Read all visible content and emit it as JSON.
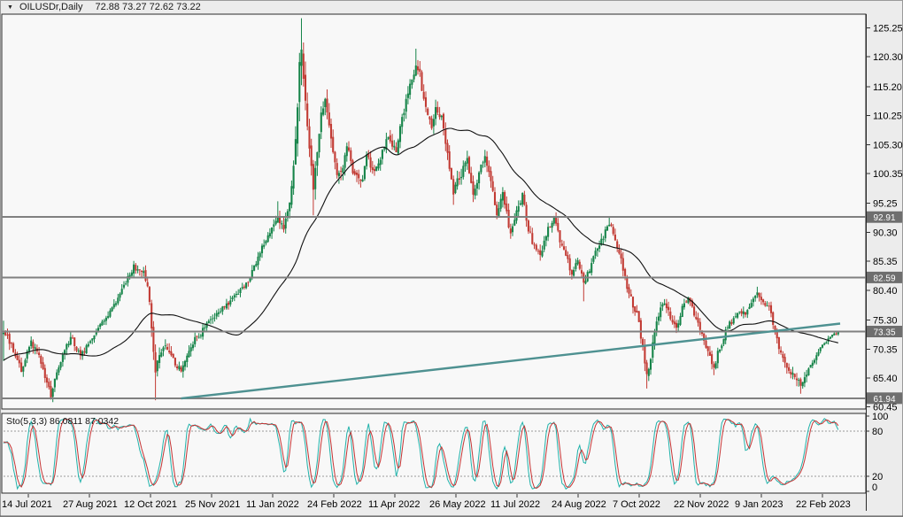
{
  "titlebar": {
    "dropdown_icon": "▼",
    "symbol_period": "OILUSDr,Daily",
    "quote_text": "72.88 73.27 72.62 73.22"
  },
  "colors": {
    "panel_bg": "#f8f8f8",
    "outer_bg": "#ececec",
    "border": "#2a2a2a",
    "up": "#168449",
    "down": "#c23b34",
    "ma": "#111111",
    "trendline": "#4e9191",
    "hline": "#808080",
    "tag_bg": "#6e6e6e",
    "tag_text": "#ffffff",
    "sto_k": "#20b2aa",
    "sto_d": "#c63434",
    "sto_level": "#9a9a9a",
    "axis_text": "#000000"
  },
  "chart_data": {
    "type": "candlestick",
    "symbol": "OILUSDr",
    "timeframe": "Daily",
    "quote": {
      "open": 72.88,
      "high": 73.27,
      "low": 72.62,
      "close": 73.22
    },
    "y_axis": {
      "ticks": [
        "125.25",
        "120.30",
        "115.20",
        "110.25",
        "105.30",
        "100.35",
        "95.25",
        "90.30",
        "85.35",
        "80.40",
        "75.30",
        "70.35",
        "65.40",
        "60.45"
      ],
      "range": [
        60.1,
        127.6
      ]
    },
    "x_axis": {
      "labels": [
        "14 Jul 2021",
        "27 Aug 2021",
        "12 Oct 2021",
        "25 Nov 2021",
        "11 Jan 2022",
        "24 Feb 2022",
        "11 Apr 2022",
        "26 May 2022",
        "11 Jul 2022",
        "24 Aug 2022",
        "7 Oct 2022",
        "22 Nov 2022",
        "9 Jan 2023",
        "22 Feb 2023"
      ]
    },
    "horizontal_lines": [
      {
        "price": 92.91,
        "label": "92.91"
      },
      {
        "price": 82.59,
        "label": "82.59"
      },
      {
        "price": 73.35,
        "label": "73.35"
      },
      {
        "price": 61.94,
        "label": "61.94"
      }
    ],
    "trendline": {
      "bar_start": 90,
      "price_start": 61.9,
      "bar_end": 424,
      "price_end": 74.7
    },
    "ma": {
      "period": 45
    },
    "stochastic": {
      "label": "Sto(5,3,3)",
      "k_value": "86.0811",
      "d_value": "87.0342",
      "period_k": 5,
      "period_d": 3,
      "slowing": 3,
      "levels": [
        80,
        20
      ],
      "scale_ticks": [
        "100",
        "80",
        "20",
        "0"
      ],
      "range": [
        0,
        100
      ]
    },
    "bars": {
      "count": 424,
      "seed": 20,
      "warmup": {
        "bars": 50,
        "start_price": 62
      },
      "anchors": [
        [
          0,
          73.5
        ],
        [
          4,
          71
        ],
        [
          9,
          66.8
        ],
        [
          14,
          71.5
        ],
        [
          18,
          69
        ],
        [
          24,
          62.3
        ],
        [
          30,
          69.5
        ],
        [
          34,
          72.5
        ],
        [
          39,
          69
        ],
        [
          45,
          72.5
        ],
        [
          52,
          75.5
        ],
        [
          61,
          81
        ],
        [
          66,
          84.5
        ],
        [
          71,
          83.5
        ],
        [
          74,
          79
        ],
        [
          77,
          65.5
        ],
        [
          79,
          69.5
        ],
        [
          82,
          71.5
        ],
        [
          86,
          68.5
        ],
        [
          90,
          66.5
        ],
        [
          97,
          72
        ],
        [
          106,
          75.5
        ],
        [
          115,
          78.5
        ],
        [
          124,
          82
        ],
        [
          130,
          87
        ],
        [
          135,
          90.5
        ],
        [
          139,
          93
        ],
        [
          142,
          90.5
        ],
        [
          145,
          95
        ],
        [
          147,
          101
        ],
        [
          149,
          110
        ],
        [
          150,
          121
        ],
        [
          151,
          123
        ],
        [
          153,
          112
        ],
        [
          155,
          104
        ],
        [
          157,
          97.5
        ],
        [
          159,
          103
        ],
        [
          161,
          110
        ],
        [
          163,
          113.5
        ],
        [
          165,
          109
        ],
        [
          167,
          104
        ],
        [
          169,
          99.5
        ],
        [
          172,
          102
        ],
        [
          174,
          105
        ],
        [
          177,
          101
        ],
        [
          181,
          98.5
        ],
        [
          184,
          103
        ],
        [
          188,
          101
        ],
        [
          192,
          104
        ],
        [
          195,
          106.5
        ],
        [
          199,
          104.5
        ],
        [
          202,
          110
        ],
        [
          205,
          114
        ],
        [
          209,
          119
        ],
        [
          211,
          117
        ],
        [
          214,
          111
        ],
        [
          217,
          108.5
        ],
        [
          219,
          111.5
        ],
        [
          222,
          110
        ],
        [
          225,
          104
        ],
        [
          228,
          97.5
        ],
        [
          232,
          100.5
        ],
        [
          235,
          103
        ],
        [
          238,
          97
        ],
        [
          241,
          100.5
        ],
        [
          244,
          103.5
        ],
        [
          247,
          99
        ],
        [
          250,
          93.5
        ],
        [
          253,
          96.5
        ],
        [
          257,
          90
        ],
        [
          260,
          94
        ],
        [
          263,
          96.5
        ],
        [
          266,
          91
        ],
        [
          269,
          87.5
        ],
        [
          272,
          86.5
        ],
        [
          275,
          90
        ],
        [
          279,
          93
        ],
        [
          282,
          89
        ],
        [
          285,
          86.5
        ],
        [
          288,
          83
        ],
        [
          291,
          85.5
        ],
        [
          294,
          81.5
        ],
        [
          297,
          84
        ],
        [
          300,
          87.5
        ],
        [
          304,
          89.5
        ],
        [
          307,
          92
        ],
        [
          310,
          89.5
        ],
        [
          313,
          85.5
        ],
        [
          316,
          81
        ],
        [
          319,
          78
        ],
        [
          322,
          75
        ],
        [
          326,
          65.5
        ],
        [
          329,
          71
        ],
        [
          332,
          76.5
        ],
        [
          335,
          78.5
        ],
        [
          338,
          76
        ],
        [
          341,
          73.5
        ],
        [
          344,
          77.5
        ],
        [
          347,
          79
        ],
        [
          351,
          75.5
        ],
        [
          354,
          72.5
        ],
        [
          357,
          69.5
        ],
        [
          360,
          67.5
        ],
        [
          363,
          70.5
        ],
        [
          366,
          73.5
        ],
        [
          369,
          75
        ],
        [
          373,
          77
        ],
        [
          376,
          76
        ],
        [
          379,
          78.5
        ],
        [
          382,
          80
        ],
        [
          385,
          78
        ],
        [
          388,
          77.5
        ],
        [
          391,
          73.5
        ],
        [
          394,
          69.5
        ],
        [
          398,
          67
        ],
        [
          401,
          65.5
        ],
        [
          404,
          64
        ],
        [
          407,
          66.5
        ],
        [
          410,
          68
        ],
        [
          413,
          70
        ],
        [
          416,
          71.5
        ],
        [
          419,
          72.5
        ],
        [
          423,
          73.22
        ]
      ],
      "vol_anchors": [
        [
          0,
          2.5
        ],
        [
          10,
          1.8
        ],
        [
          24,
          2.2
        ],
        [
          40,
          1.7
        ],
        [
          60,
          1.7
        ],
        [
          66,
          1.9
        ],
        [
          73,
          2.2
        ],
        [
          77,
          4.5
        ],
        [
          82,
          2.6
        ],
        [
          90,
          2.2
        ],
        [
          110,
          1.7
        ],
        [
          130,
          1.9
        ],
        [
          145,
          2.6
        ],
        [
          148,
          5
        ],
        [
          150,
          8
        ],
        [
          152,
          7
        ],
        [
          156,
          4.5
        ],
        [
          162,
          3.5
        ],
        [
          170,
          3
        ],
        [
          180,
          2.6
        ],
        [
          195,
          2.2
        ],
        [
          205,
          2.6
        ],
        [
          211,
          2.8
        ],
        [
          222,
          2.6
        ],
        [
          228,
          3
        ],
        [
          240,
          2.4
        ],
        [
          252,
          2.6
        ],
        [
          266,
          2.2
        ],
        [
          280,
          2
        ],
        [
          294,
          2.2
        ],
        [
          307,
          2
        ],
        [
          320,
          2.2
        ],
        [
          326,
          3
        ],
        [
          335,
          2.2
        ],
        [
          350,
          2
        ],
        [
          360,
          2.2
        ],
        [
          375,
          1.7
        ],
        [
          385,
          1.6
        ],
        [
          395,
          2
        ],
        [
          404,
          2.2
        ],
        [
          414,
          1.4
        ],
        [
          423,
          0.8
        ]
      ],
      "extremes": [
        [
          0,
          "h",
          75.2
        ],
        [
          0,
          "l",
          68.3
        ],
        [
          24,
          "l",
          61.7
        ],
        [
          66,
          "h",
          85.4
        ],
        [
          77,
          "l",
          61.6
        ],
        [
          139,
          "h",
          95.6
        ],
        [
          151,
          "h",
          126.9
        ],
        [
          157,
          "l",
          93.2
        ],
        [
          209,
          "h",
          121.7
        ],
        [
          228,
          "l",
          95.0
        ],
        [
          294,
          "l",
          78.5
        ],
        [
          307,
          "h",
          92.8
        ],
        [
          326,
          "l",
          63.6
        ],
        [
          360,
          "l",
          65.9
        ],
        [
          382,
          "h",
          81.0
        ],
        [
          404,
          "l",
          62.7
        ]
      ]
    }
  }
}
